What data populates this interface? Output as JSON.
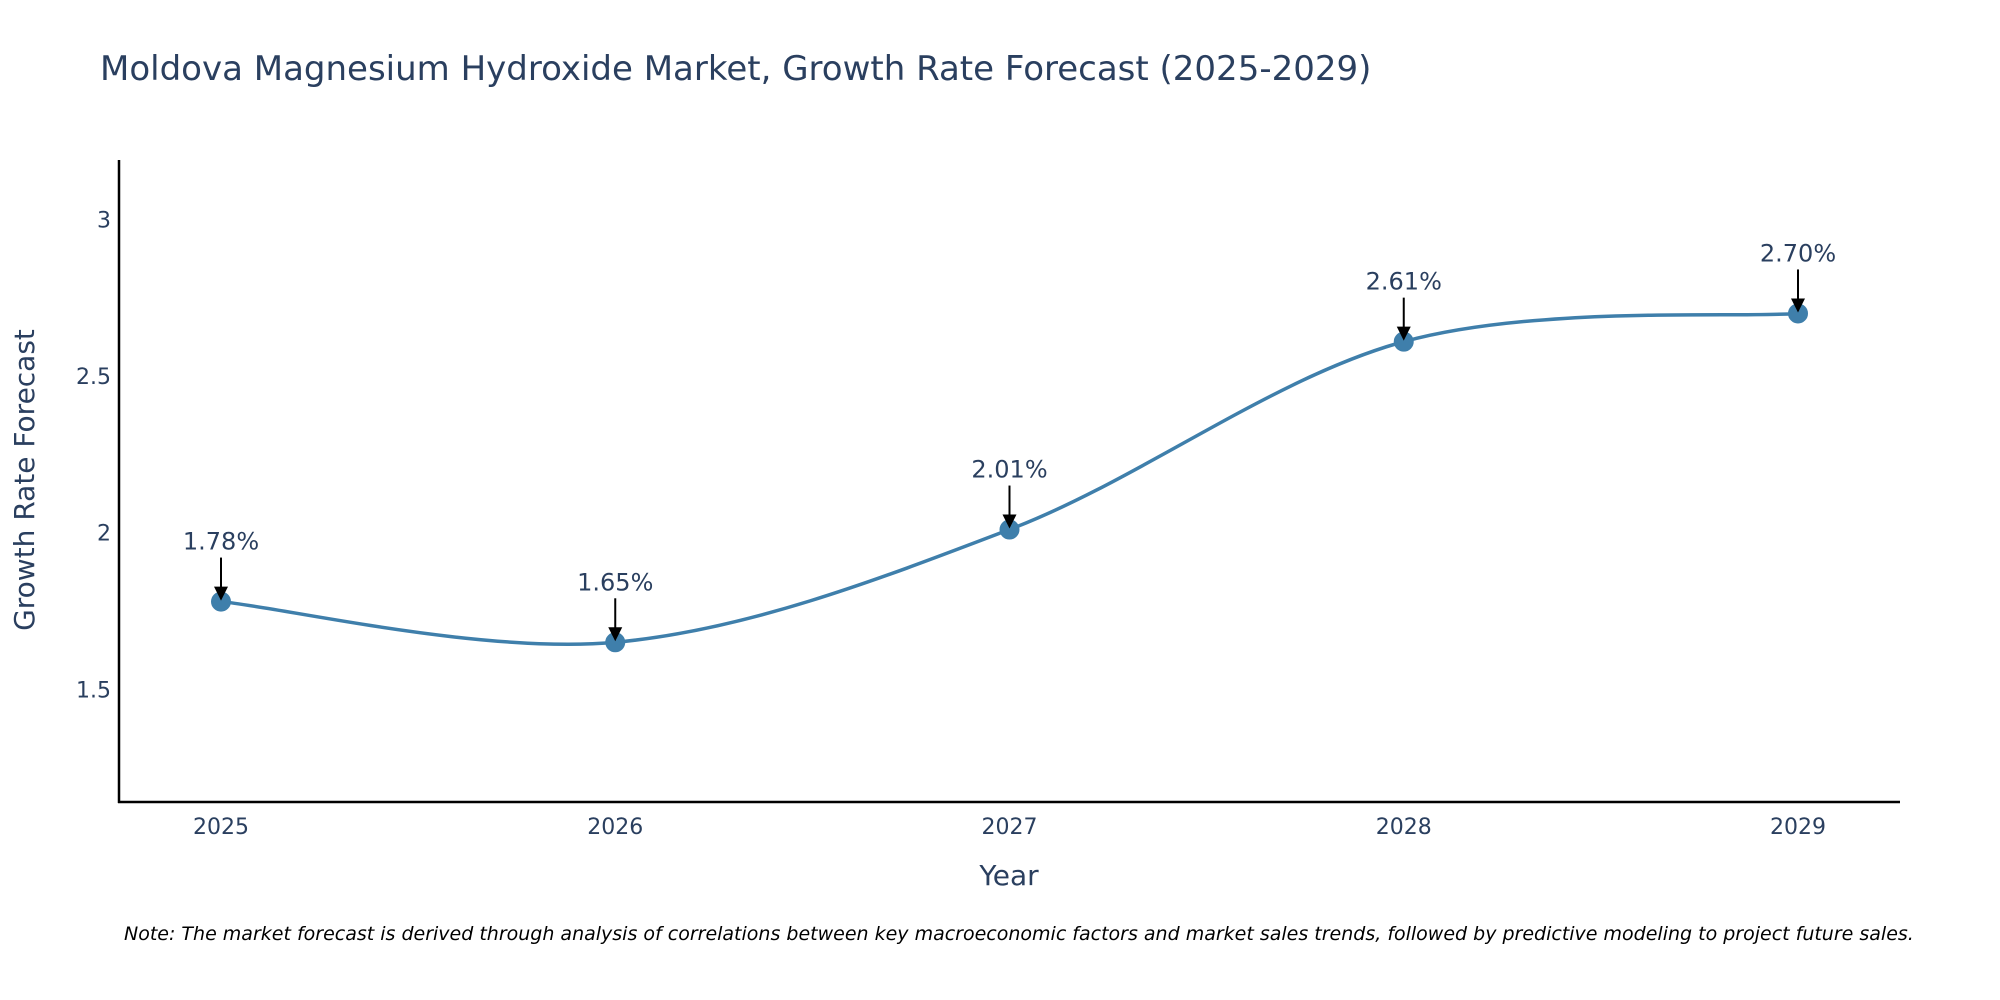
{
  "chart_data": {
    "type": "line",
    "title": "Moldova Magnesium Hydroxide Market, Growth Rate Forecast (2025-2029)",
    "xlabel": "Year",
    "ylabel": "Growth Rate Forecast",
    "categories": [
      "2025",
      "2026",
      "2027",
      "2028",
      "2029"
    ],
    "series": [
      {
        "name": "Growth Rate Forecast",
        "values": [
          1.78,
          1.65,
          2.01,
          2.61,
          2.7
        ],
        "color": "#3f7fab",
        "line_shape": "spline"
      }
    ],
    "annotations": [
      "1.78%",
      "1.65%",
      "2.01%",
      "2.61%",
      "2.70%"
    ],
    "ylim": [
      1.14,
      3.19
    ],
    "yticks": [
      1.5,
      2,
      2.5,
      3
    ],
    "ytick_labels": [
      "1.5",
      "2",
      "2.5",
      "3"
    ],
    "grid": false,
    "note": "Note: The market forecast is derived through analysis of correlations between key macroeconomic factors and market sales trends, followed by predictive modeling to project future sales."
  }
}
